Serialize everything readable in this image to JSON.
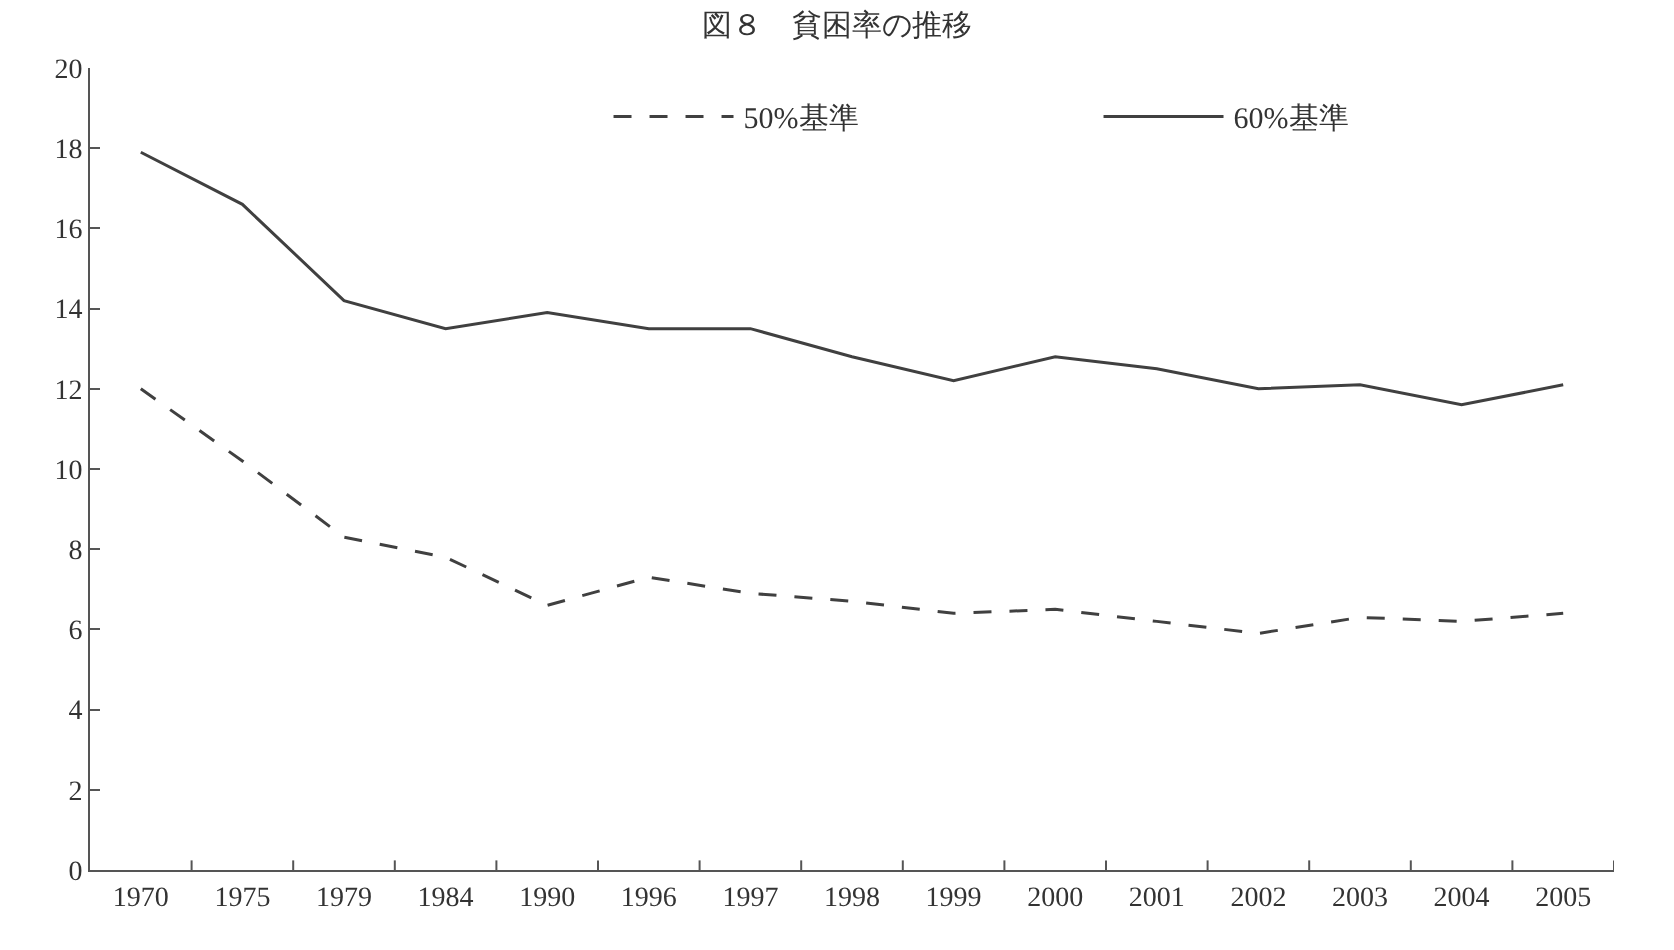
{
  "chart_data": {
    "type": "line",
    "title": "図８　貧困率の推移",
    "categories": [
      "1970",
      "1975",
      "1979",
      "1984",
      "1990",
      "1996",
      "1997",
      "1998",
      "1999",
      "2000",
      "2001",
      "2002",
      "2003",
      "2004",
      "2005"
    ],
    "series": [
      {
        "name": "50%基準",
        "color": "#404040",
        "line_style": "dashed",
        "values": [
          12.0,
          10.2,
          8.3,
          7.8,
          6.6,
          7.3,
          6.9,
          6.7,
          6.4,
          6.5,
          6.2,
          5.9,
          6.3,
          6.2,
          6.4
        ]
      },
      {
        "name": "60%基準",
        "color": "#404040",
        "line_style": "solid",
        "values": [
          17.9,
          16.6,
          14.2,
          13.5,
          13.9,
          13.5,
          13.5,
          12.8,
          12.2,
          12.8,
          12.5,
          12.0,
          12.1,
          11.6,
          12.1
        ]
      }
    ],
    "ylim": [
      0,
      20
    ],
    "yticks": [
      0,
      2,
      4,
      6,
      8,
      10,
      12,
      14,
      16,
      18,
      20
    ],
    "grid": false,
    "legend": "top right",
    "marker": "none"
  }
}
